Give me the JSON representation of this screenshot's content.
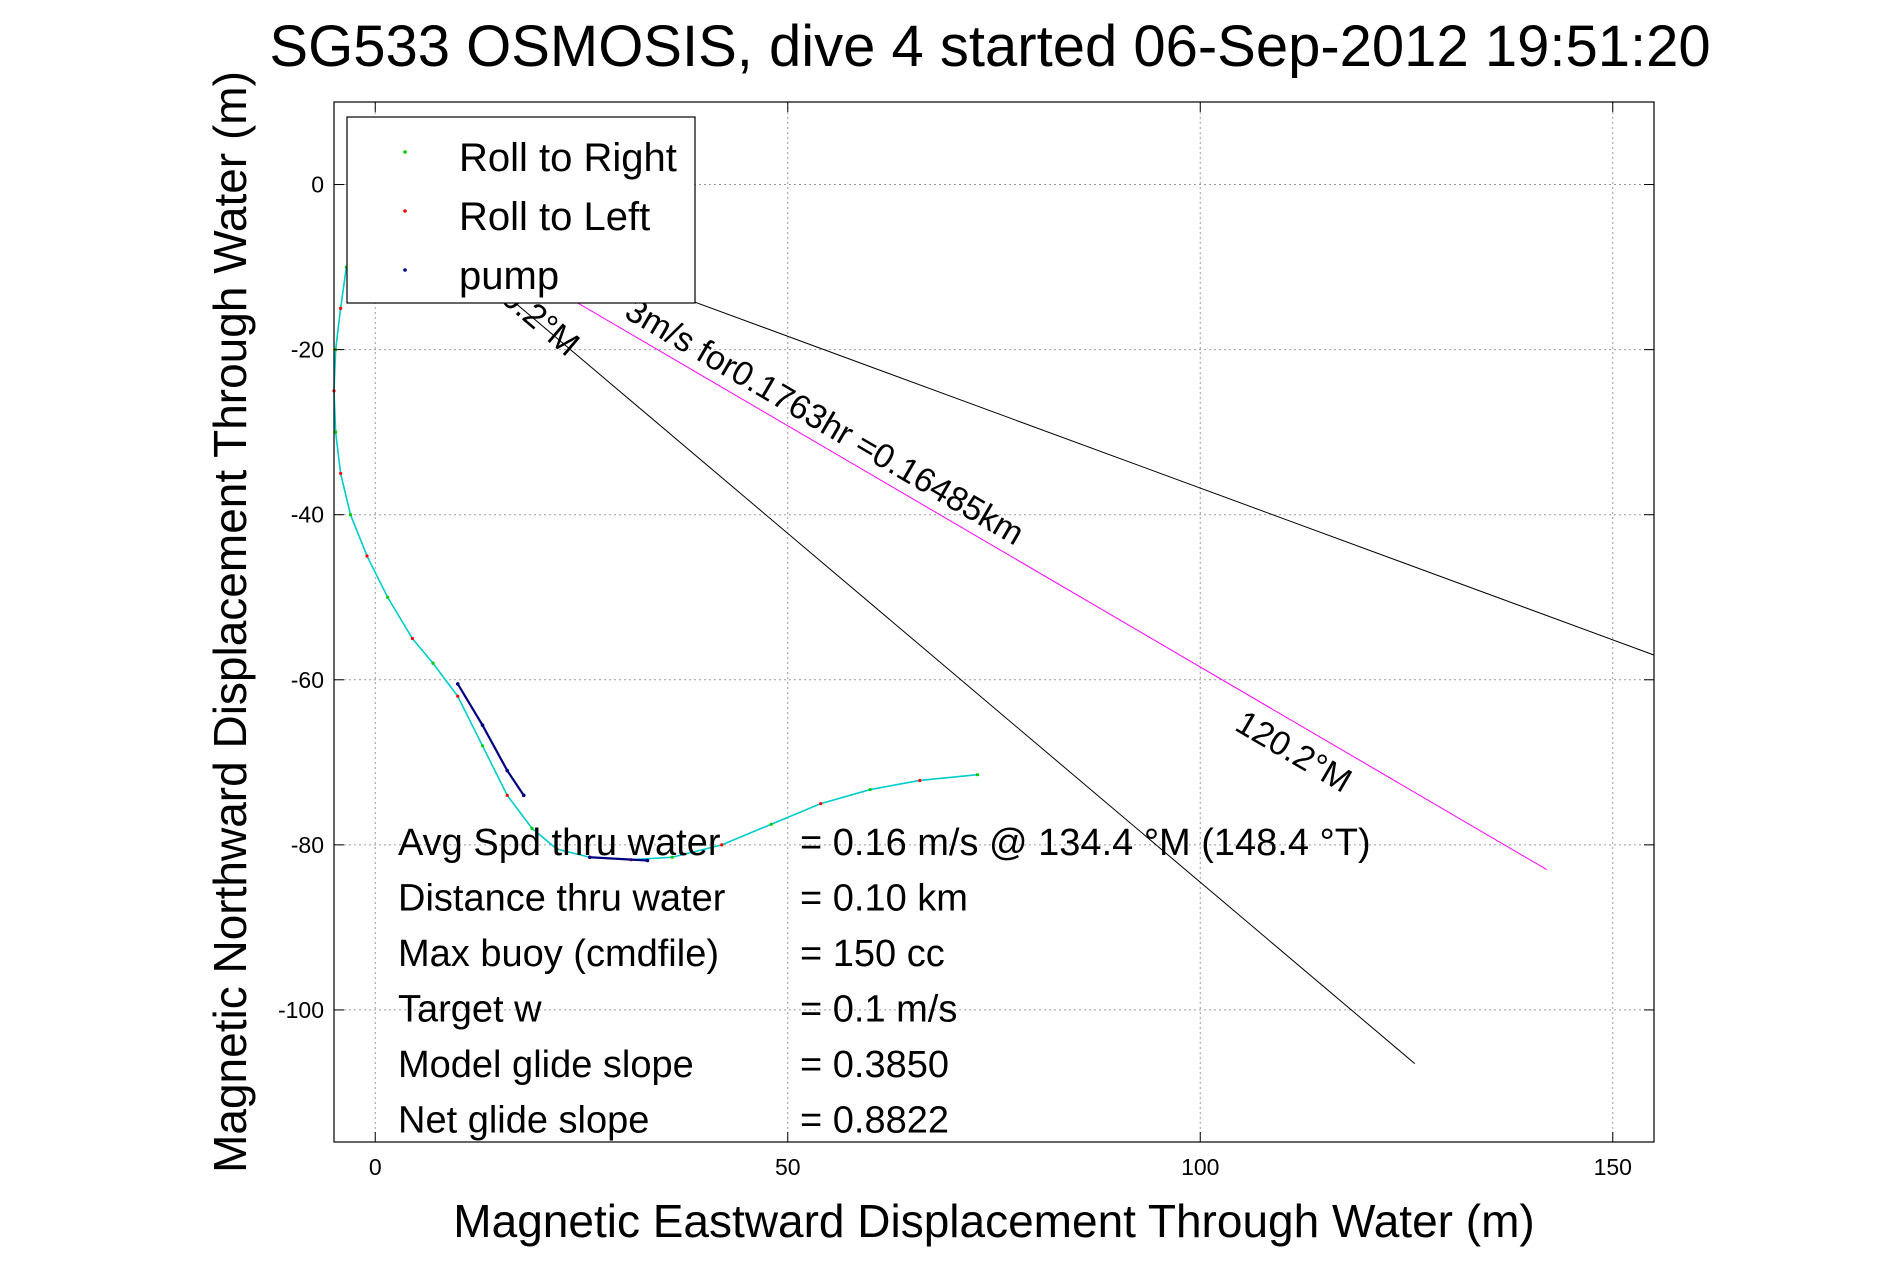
{
  "chart_data": {
    "type": "line",
    "title": "SG533 OSMOSIS, dive 4 started 06-Sep-2012 19:51:20",
    "xlabel": "Magnetic Eastward Displacement Through Water (m)",
    "ylabel": "Magnetic Northward Displacement Through Water (m)",
    "xlim": [
      -5,
      155
    ],
    "ylim": [
      -116,
      10
    ],
    "xticks": [
      0,
      50,
      100,
      150
    ],
    "yticks": [
      0,
      -20,
      -40,
      -60,
      -80,
      -100
    ],
    "grid": true,
    "legend": {
      "placement": "top-left",
      "entries": [
        {
          "label": "Roll to Right",
          "color": "#00cc00"
        },
        {
          "label": "Roll to Left",
          "color": "#ff0000"
        },
        {
          "label": "pump",
          "color": "#000080"
        }
      ]
    },
    "track": {
      "color": "#00cccc",
      "x": [
        -3.5,
        -4.2,
        -4.8,
        -5.0,
        -4.8,
        -4.2,
        -3.0,
        -1.0,
        1.5,
        4.5,
        7.0,
        10.0,
        13.0,
        16.0,
        19.0,
        22.0,
        26.0,
        31.0,
        36.0,
        42.0,
        48.0,
        54.0,
        60.0,
        66.0,
        73.0
      ],
      "y": [
        -10,
        -15,
        -20,
        -25,
        -30,
        -35,
        -40,
        -45,
        -50,
        -55,
        -58,
        -62,
        -68,
        -74,
        -78,
        -80.5,
        -81.5,
        -81.8,
        -81.5,
        -80.0,
        -77.5,
        -75.0,
        -73.3,
        -72.2,
        -71.5
      ]
    },
    "pump_segments": [
      {
        "x": [
          10.0,
          13.0,
          16.0,
          18.0
        ],
        "y": [
          -60.5,
          -65.5,
          -71.0,
          -74.0
        ]
      },
      {
        "x": [
          26.0,
          33.0
        ],
        "y": [
          -81.5,
          -81.9
        ]
      }
    ],
    "direction_lines": [
      {
        "color": "#000000",
        "x": [
          0,
          155
        ],
        "y": [
          0,
          -57
        ]
      },
      {
        "color": "#000000",
        "x": [
          0,
          126
        ],
        "y": [
          0,
          -106.5
        ]
      },
      {
        "color": "#ff00ff",
        "x": [
          0,
          142
        ],
        "y": [
          0,
          -83
        ]
      }
    ],
    "annotations": [
      {
        "text": "3m/s for0.1763hr =0.16485km",
        "x": 30,
        "y": -16
      },
      {
        "text": "120.2°M",
        "x": 104,
        "y": -66
      },
      {
        "text": "0.2°M",
        "x": 15,
        "y": -14
      }
    ],
    "stats": [
      {
        "label": "Avg Spd thru water",
        "value": "=  0.16 m/s @ 134.4 °M (148.4 °T)"
      },
      {
        "label": "Distance thru water",
        "value": "=  0.10 km"
      },
      {
        "label": "Max buoy (cmdfile)",
        "value": "= 150 cc"
      },
      {
        "label": "Target w",
        "value": "= 0.1 m/s"
      },
      {
        "label": "Model glide slope",
        "value": "= 0.3850"
      },
      {
        "label": "Net glide slope",
        "value": "= 0.8822"
      }
    ]
  }
}
